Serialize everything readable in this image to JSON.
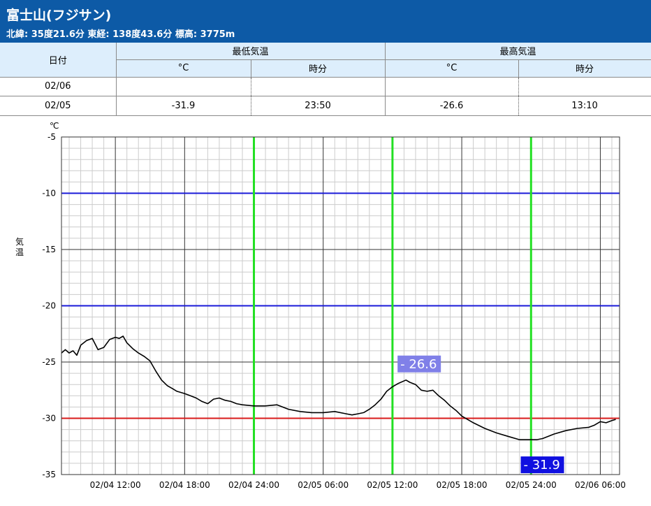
{
  "header": {
    "title": "富士山(フジサン)",
    "subtitle": "北緯: 35度21.6分 東経: 138度43.6分 標高: 3775m"
  },
  "summary_table": {
    "date_header": "日付",
    "min_header": "最低気温",
    "max_header": "最高気温",
    "unit_celsius": "°C",
    "unit_time": "時分",
    "rows": [
      {
        "date": "02/06",
        "min_temp": "",
        "min_time": "",
        "max_temp": "",
        "max_time": ""
      },
      {
        "date": "02/05",
        "min_temp": "-31.9",
        "min_time": "23:50",
        "max_temp": "-26.6",
        "max_time": "13:10"
      }
    ]
  },
  "colors": {
    "header_bg": "#0d5aa6",
    "table_header_bg": "#ddeefc",
    "line": "#000000",
    "blue_ref": "#1a1ad8",
    "red_ref": "#d81a1a",
    "green_marker": "#22e022",
    "max_label_bg": "#8080e8",
    "min_label_bg": "#1010e0"
  },
  "chart_data": {
    "type": "line",
    "ylabel": "気温",
    "yunit": "℃",
    "ylim": [
      -35,
      -5
    ],
    "yticks": [
      -5,
      -10,
      -15,
      -20,
      -25,
      -30,
      -35
    ],
    "xlim": [
      "02/04 07:20",
      "02/06 07:40"
    ],
    "xticks": [
      "02/04 12:00",
      "02/04 18:00",
      "02/04 24:00",
      "02/05 06:00",
      "02/05 12:00",
      "02/05 18:00",
      "02/05 24:00",
      "02/06 06:00"
    ],
    "grid": true,
    "reference_lines": [
      {
        "value": -10,
        "color": "blue"
      },
      {
        "value": -20,
        "color": "blue"
      },
      {
        "value": -30,
        "color": "red"
      }
    ],
    "vertical_markers": [
      "02/04 24:00",
      "02/05 12:00",
      "02/05 24:00"
    ],
    "annotations": [
      {
        "label": "- 26.6",
        "x": "02/05 13:10",
        "y": -26.6,
        "kind": "max"
      },
      {
        "label": "- 31.9",
        "x": "02/05 23:50",
        "y": -31.9,
        "kind": "min"
      }
    ],
    "series": [
      {
        "x": [
          "02/04 07:20",
          "02/04 07:40",
          "02/04 08:00",
          "02/04 08:20",
          "02/04 08:40",
          "02/04 09:00",
          "02/04 09:30",
          "02/04 10:00",
          "02/04 10:30",
          "02/04 11:00",
          "02/04 11:30",
          "02/04 12:00",
          "02/04 12:20",
          "02/04 12:40",
          "02/04 13:00",
          "02/04 13:30",
          "02/04 14:00",
          "02/04 14:30",
          "02/04 15:00",
          "02/04 15:30",
          "02/04 16:00",
          "02/04 16:30",
          "02/04 17:00",
          "02/04 17:20",
          "02/04 17:40",
          "02/04 18:00",
          "02/04 18:30",
          "02/04 19:00",
          "02/04 19:30",
          "02/04 20:00",
          "02/04 20:30",
          "02/04 21:00",
          "02/04 21:30",
          "02/04 22:00",
          "02/04 22:30",
          "02/04 23:00",
          "02/04 24:00",
          "02/05 01:00",
          "02/05 02:00",
          "02/05 03:00",
          "02/05 04:00",
          "02/05 05:00",
          "02/05 06:00",
          "02/05 07:00",
          "02/05 08:00",
          "02/05 08:30",
          "02/05 09:00",
          "02/05 09:30",
          "02/05 10:00",
          "02/05 10:30",
          "02/05 11:00",
          "02/05 11:30",
          "02/05 12:00",
          "02/05 12:30",
          "02/05 13:10",
          "02/05 13:30",
          "02/05 14:00",
          "02/05 14:30",
          "02/05 15:00",
          "02/05 15:30",
          "02/05 16:00",
          "02/05 16:30",
          "02/05 17:00",
          "02/05 17:30",
          "02/05 18:00",
          "02/05 19:00",
          "02/05 20:00",
          "02/05 21:00",
          "02/05 22:00",
          "02/05 23:00",
          "02/05 23:50",
          "02/06 00:30",
          "02/06 01:00",
          "02/06 01:30",
          "02/06 02:00",
          "02/06 03:00",
          "02/06 04:00",
          "02/06 05:00",
          "02/06 05:30",
          "02/06 06:00",
          "02/06 06:30",
          "02/06 07:00",
          "02/06 07:20"
        ],
        "values": [
          -24.2,
          -23.9,
          -24.2,
          -24.0,
          -24.4,
          -23.5,
          -23.1,
          -22.9,
          -23.9,
          -23.7,
          -23.0,
          -22.8,
          -22.9,
          -22.7,
          -23.3,
          -23.8,
          -24.2,
          -24.5,
          -24.9,
          -25.8,
          -26.6,
          -27.1,
          -27.4,
          -27.6,
          -27.7,
          -27.8,
          -28.0,
          -28.2,
          -28.5,
          -28.7,
          -28.3,
          -28.2,
          -28.4,
          -28.5,
          -28.7,
          -28.8,
          -28.9,
          -28.9,
          -28.8,
          -29.2,
          -29.4,
          -29.5,
          -29.5,
          -29.4,
          -29.6,
          -29.7,
          -29.6,
          -29.5,
          -29.2,
          -28.8,
          -28.3,
          -27.6,
          -27.2,
          -26.9,
          -26.6,
          -26.8,
          -27.0,
          -27.5,
          -27.6,
          -27.5,
          -28.0,
          -28.4,
          -28.9,
          -29.3,
          -29.8,
          -30.4,
          -30.9,
          -31.3,
          -31.6,
          -31.9,
          -31.9,
          -31.9,
          -31.8,
          -31.6,
          -31.4,
          -31.1,
          -30.9,
          -30.8,
          -30.6,
          -30.3,
          -30.4,
          -30.2,
          -30.1
        ]
      }
    ]
  }
}
